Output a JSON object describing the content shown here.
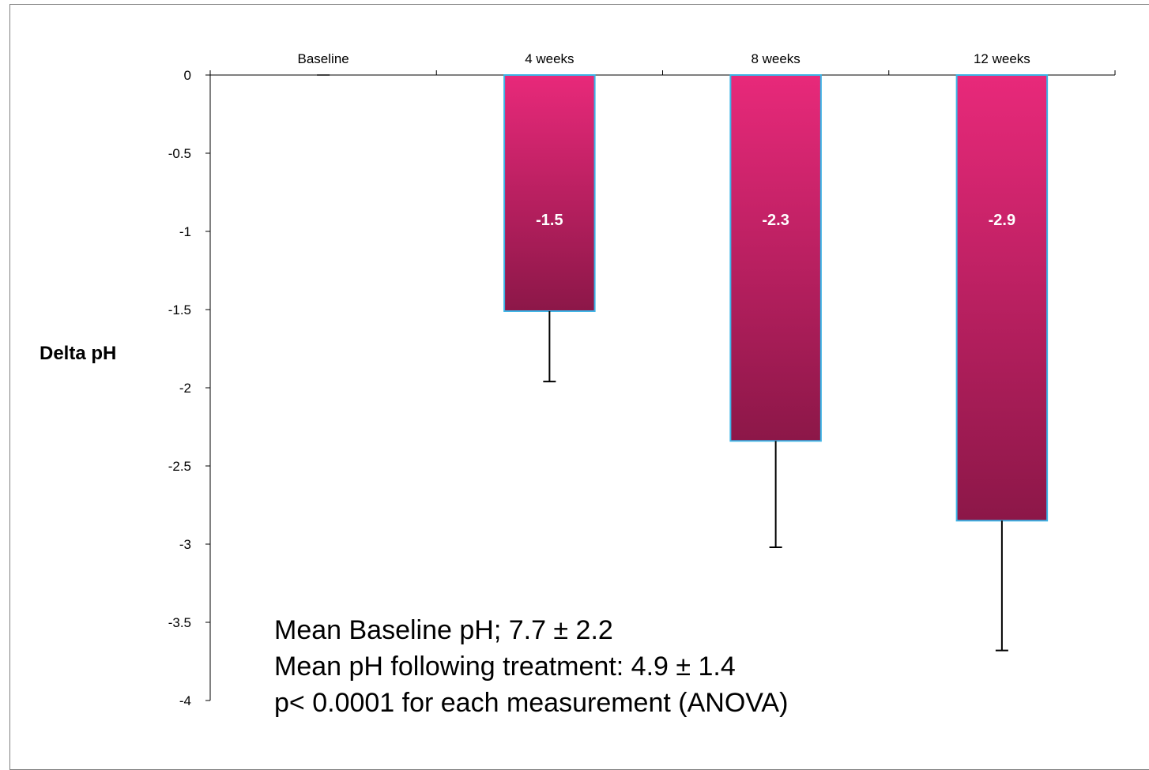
{
  "chart_data": {
    "type": "bar",
    "categories": [
      "Baseline",
      "4 weeks",
      "8 weeks",
      "12 weeks"
    ],
    "values": [
      0,
      -1.51,
      -2.34,
      -2.85
    ],
    "data_labels": [
      "",
      "-1.5",
      "-2.3",
      "-2.9"
    ],
    "error_bars": [
      0,
      0.45,
      0.68,
      0.83
    ],
    "ylabel": "Delta pH",
    "xlabel": "",
    "title": "",
    "ylim": [
      -4,
      0
    ],
    "yticks": [
      0,
      -0.5,
      -1,
      -1.5,
      -2,
      -2.5,
      -3,
      -3.5,
      -4
    ],
    "ytick_labels": [
      "0",
      "-0.5",
      "-1",
      "-1.5",
      "-2",
      "-2.5",
      "-3",
      "-3.5",
      "-4"
    ],
    "category_axis_position": "top",
    "grid": false,
    "legend": "none",
    "colors": {
      "bar_top": "#e8297a",
      "bar_bottom": "#8c1748",
      "bar_edge": "#3cb4e6",
      "axis": "#000000"
    },
    "annotations": [
      "Mean Baseline pH; 7.7 ± 2.2",
      "Mean pH following treatment: 4.9 ± 1.4",
      "p< 0.0001 for each measurement  (ANOVA)"
    ]
  }
}
